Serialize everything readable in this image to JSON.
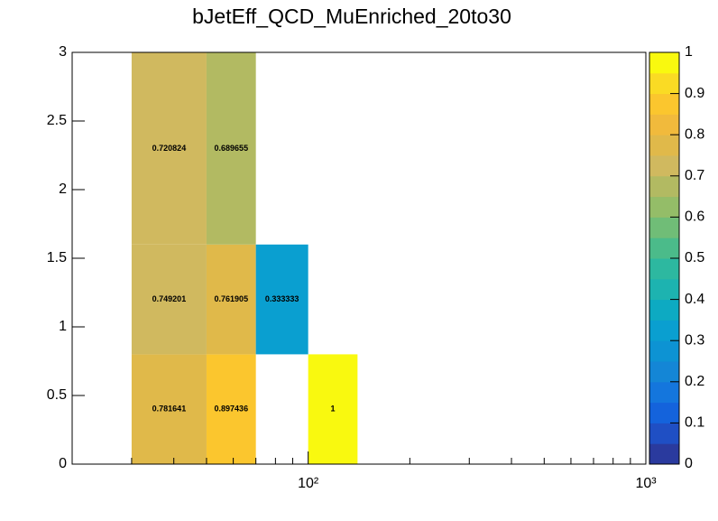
{
  "chart_data": {
    "type": "heatmap",
    "title": "bJetEff_QCD_MuEnriched_20to30",
    "xbins": [
      30,
      50,
      70,
      100,
      140
    ],
    "ybins": [
      0,
      0.8,
      1.6,
      3
    ],
    "z": [
      [
        0.781641,
        0.897436,
        null,
        1
      ],
      [
        0.749201,
        0.761905,
        0.333333,
        null
      ],
      [
        0.720824,
        0.689655,
        null,
        null
      ]
    ],
    "xlim": [
      20,
      1000
    ],
    "xlog": true,
    "xticks": [
      {
        "value": 100,
        "label": "10²"
      },
      {
        "value": 1000,
        "label": "10³"
      }
    ],
    "xminorticks": [
      20,
      30,
      40,
      50,
      60,
      70,
      80,
      90,
      200,
      300,
      400,
      500,
      600,
      700,
      800,
      900
    ],
    "ylim": [
      0,
      3
    ],
    "yticks": [
      0,
      0.5,
      1,
      1.5,
      2,
      2.5,
      3
    ],
    "zlim": [
      0,
      1
    ],
    "zticks": [
      0,
      0.1,
      0.2,
      0.3,
      0.4,
      0.5,
      0.6,
      0.7,
      0.8,
      0.9,
      1
    ],
    "palette": [
      "#2a3a9e",
      "#1f4fc4",
      "#1463dc",
      "#1476dd",
      "#1486d6",
      "#0d93d3",
      "#0a9fd0",
      "#0daac2",
      "#1db3b0",
      "#2db8a0",
      "#4bbb8a",
      "#70bd77",
      "#94bd68",
      "#b2ba62",
      "#d0b95f",
      "#e0b94a",
      "#f1ba3c",
      "#fbc62e",
      "#fadb24",
      "#f9f90f"
    ]
  }
}
